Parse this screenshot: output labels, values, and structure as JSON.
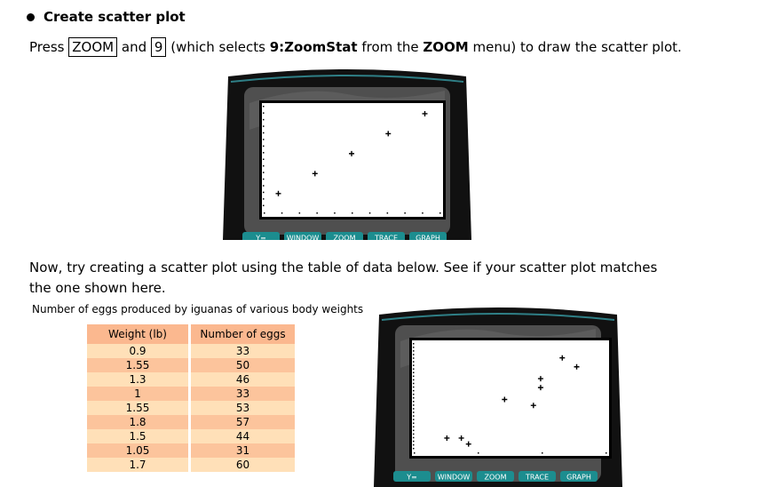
{
  "heading": "Create scatter plot",
  "instruction": {
    "press": "Press",
    "zoom_key": "ZOOM",
    "and": "and",
    "nine_key": "9",
    "paren_open": "(which selects",
    "menu_item": "9:ZoomStat",
    "from_the": "from the",
    "menu_name": "ZOOM",
    "rest": "menu) to draw the scatter plot."
  },
  "paragraph2": "Now, try creating a scatter plot using the table of data below. See if your scatter plot matches the one shown here.",
  "table": {
    "caption": "Number of eggs produced by iguanas of various body weights",
    "headers": [
      "Weight (lb)",
      "Number of eggs"
    ],
    "rows": [
      [
        "0.9",
        "33"
      ],
      [
        "1.55",
        "50"
      ],
      [
        "1.3",
        "46"
      ],
      [
        "1",
        "33"
      ],
      [
        "1.55",
        "53"
      ],
      [
        "1.8",
        "57"
      ],
      [
        "1.5",
        "44"
      ],
      [
        "1.05",
        "31"
      ],
      [
        "1.7",
        "60"
      ]
    ]
  },
  "calculator_keys": [
    "Y=",
    "WINDOW",
    "ZOOM",
    "TRACE",
    "GRAPH"
  ],
  "chart_data": [
    {
      "type": "scatter",
      "points": [
        [
          1,
          1
        ],
        [
          2,
          2
        ],
        [
          3,
          3
        ],
        [
          4,
          4
        ],
        [
          5,
          5
        ]
      ],
      "xlim": [
        0.6,
        5.4
      ],
      "ylim": [
        0.1,
        5.4
      ],
      "x_ticks": 10,
      "y_ticks": 16
    },
    {
      "type": "scatter",
      "points": [
        [
          0.9,
          33
        ],
        [
          1.55,
          50
        ],
        [
          1.3,
          46
        ],
        [
          1,
          33
        ],
        [
          1.55,
          53
        ],
        [
          1.8,
          57
        ],
        [
          1.5,
          44
        ],
        [
          1.05,
          31
        ],
        [
          1.7,
          60
        ]
      ],
      "xlim": [
        0.67,
        2.0
      ],
      "ylim": [
        28.5,
        65
      ],
      "x_ticks": 3,
      "y_ticks": 30
    }
  ]
}
